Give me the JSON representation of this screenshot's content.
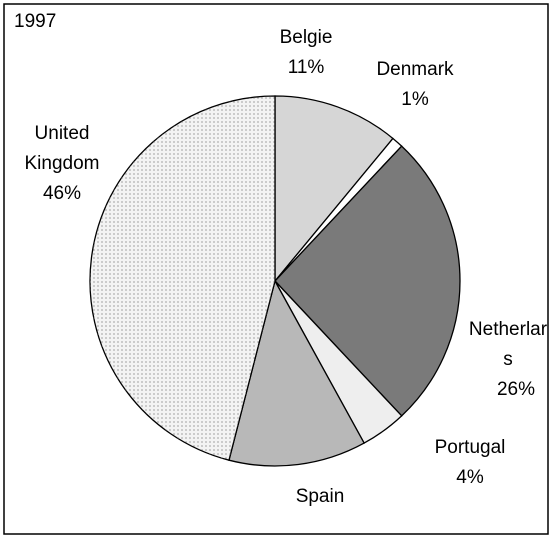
{
  "chart_data": {
    "type": "pie",
    "title": "1997",
    "categories": [
      "Belgie",
      "Denmark",
      "Netherlar s",
      "Portugal",
      "Spain",
      "United Kingdom"
    ],
    "values": [
      11,
      1,
      26,
      4,
      12,
      46
    ],
    "value_labels": [
      "11%",
      "1%",
      "26%",
      "4%",
      null,
      "46%"
    ],
    "colors": [
      "#d6d6d6",
      "#ffffff",
      "#7a7a7a",
      "#eeeeee",
      "#b8b8b8",
      "#f3f3f3"
    ]
  }
}
